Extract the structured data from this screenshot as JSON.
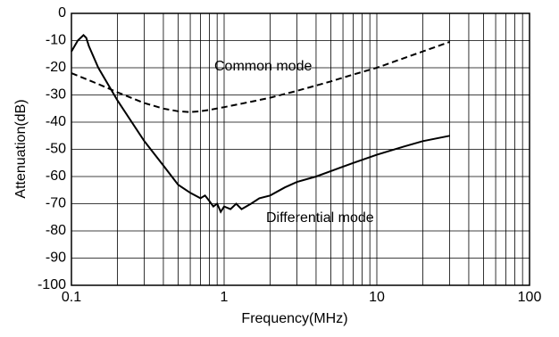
{
  "chart_data": {
    "type": "line",
    "x_label": "Frequency(MHz)",
    "y_label": "Attenuation(dB)",
    "xlim": [
      0.1,
      100
    ],
    "xticks": [
      0.1,
      1,
      10,
      100
    ],
    "x_log": true,
    "x_minor_grid": true,
    "ylim": [
      -100,
      0
    ],
    "yticks": [
      0,
      -10,
      -20,
      -30,
      -40,
      -50,
      -60,
      -70,
      -80,
      -90,
      -100
    ],
    "grid": true,
    "series": [
      {
        "name": "Common mode",
        "color": "#000000",
        "line_style": "dashed",
        "x": [
          0.1,
          0.15,
          0.2,
          0.3,
          0.4,
          0.5,
          0.6,
          0.7,
          0.8,
          1,
          1.5,
          2,
          3,
          5,
          7,
          10,
          15,
          20,
          30
        ],
        "values": [
          -22,
          -26,
          -29,
          -33,
          -35,
          -36,
          -36.3,
          -36,
          -35.5,
          -34.5,
          -32.5,
          -31,
          -28.5,
          -25,
          -22.5,
          -20,
          -16.5,
          -14,
          -10.5
        ]
      },
      {
        "name": "Differential mode",
        "color": "#000000",
        "line_style": "solid",
        "x": [
          0.1,
          0.11,
          0.12,
          0.125,
          0.13,
          0.15,
          0.2,
          0.3,
          0.4,
          0.5,
          0.6,
          0.7,
          0.75,
          0.8,
          0.85,
          0.9,
          0.95,
          1,
          1.1,
          1.2,
          1.3,
          1.5,
          1.7,
          2,
          2.5,
          3,
          4,
          5,
          7,
          10,
          15,
          20,
          30
        ],
        "values": [
          -14,
          -10,
          -8,
          -9,
          -12,
          -20,
          -32,
          -47,
          -56,
          -63,
          -66,
          -68,
          -67,
          -69,
          -71,
          -70,
          -73,
          -71,
          -72,
          -70,
          -72,
          -70,
          -68,
          -67,
          -64,
          -62,
          -60,
          -58,
          -55,
          -52,
          -49,
          -47,
          -45
        ]
      }
    ]
  }
}
